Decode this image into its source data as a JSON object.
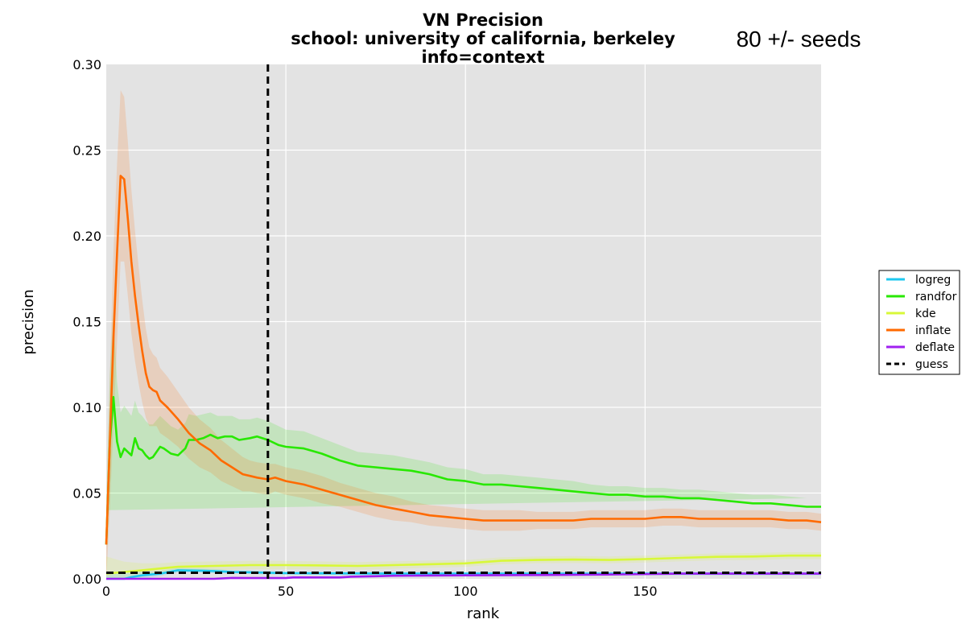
{
  "chart_data": {
    "type": "line",
    "title_lines": [
      "VN Precision",
      "school: university of california, berkeley",
      "info=context"
    ],
    "annotation": "80 +/- seeds",
    "xlabel": "rank",
    "ylabel": "precision",
    "xlim": [
      0,
      199
    ],
    "ylim": [
      0,
      0.3
    ],
    "xticks": [
      0,
      50,
      100,
      150
    ],
    "xtick_labels": [
      "0",
      "50",
      "100",
      "150"
    ],
    "yticks": [
      0,
      0.05,
      0.1,
      0.15,
      0.2,
      0.25,
      0.3
    ],
    "ytick_labels": [
      "0.00",
      "0.05",
      "0.10",
      "0.15",
      "0.20",
      "0.25",
      "0.30"
    ],
    "grid": true,
    "legend_position": "outside-right",
    "vline": {
      "x": 45,
      "style": "dashed",
      "color": "#000000"
    },
    "series": [
      {
        "name": "logreg",
        "color": "#1ec8f0",
        "points": [
          [
            0,
            0
          ],
          [
            5,
            0
          ],
          [
            7,
            0.001
          ],
          [
            10,
            0.002
          ],
          [
            15,
            0.003
          ],
          [
            20,
            0.005
          ],
          [
            25,
            0.0048
          ],
          [
            30,
            0.0045
          ],
          [
            35,
            0.004
          ],
          [
            40,
            0.0038
          ],
          [
            45,
            0.0035
          ],
          [
            50,
            0.0033
          ],
          [
            60,
            0.0032
          ],
          [
            80,
            0.003
          ],
          [
            100,
            0.003
          ],
          [
            150,
            0.003
          ],
          [
            199,
            0.003
          ]
        ],
        "band": [
          0.004,
          0.003,
          0.0025,
          0.002,
          0.0015,
          0.0015,
          0.0012,
          0.0012,
          0.001,
          0.001,
          0.001,
          0.001,
          0.001,
          0.001,
          0.001,
          0.001,
          0.001
        ]
      },
      {
        "name": "randfor",
        "color": "#28e800",
        "points": [
          [
            0,
            0.02
          ],
          [
            1,
            0.08
          ],
          [
            2,
            0.106
          ],
          [
            3,
            0.08
          ],
          [
            4,
            0.071
          ],
          [
            5,
            0.076
          ],
          [
            6,
            0.074
          ],
          [
            7,
            0.072
          ],
          [
            8,
            0.082
          ],
          [
            9,
            0.076
          ],
          [
            10,
            0.075
          ],
          [
            11,
            0.072
          ],
          [
            12,
            0.07
          ],
          [
            13,
            0.071
          ],
          [
            15,
            0.077
          ],
          [
            16,
            0.076
          ],
          [
            18,
            0.073
          ],
          [
            20,
            0.072
          ],
          [
            22,
            0.076
          ],
          [
            23,
            0.081
          ],
          [
            25,
            0.081
          ],
          [
            27,
            0.082
          ],
          [
            29,
            0.084
          ],
          [
            31,
            0.082
          ],
          [
            33,
            0.083
          ],
          [
            35,
            0.083
          ],
          [
            37,
            0.081
          ],
          [
            40,
            0.082
          ],
          [
            42,
            0.083
          ],
          [
            45,
            0.081
          ],
          [
            48,
            0.078
          ],
          [
            50,
            0.077
          ],
          [
            55,
            0.076
          ],
          [
            60,
            0.073
          ],
          [
            65,
            0.069
          ],
          [
            70,
            0.066
          ],
          [
            75,
            0.065
          ],
          [
            80,
            0.064
          ],
          [
            85,
            0.063
          ],
          [
            90,
            0.061
          ],
          [
            95,
            0.058
          ],
          [
            100,
            0.057
          ],
          [
            105,
            0.055
          ],
          [
            110,
            0.055
          ],
          [
            115,
            0.054
          ],
          [
            120,
            0.053
          ],
          [
            125,
            0.052
          ],
          [
            130,
            0.051
          ],
          [
            135,
            0.05
          ],
          [
            140,
            0.049
          ],
          [
            145,
            0.049
          ],
          [
            150,
            0.048
          ],
          [
            155,
            0.048
          ],
          [
            160,
            0.047
          ],
          [
            165,
            0.047
          ],
          [
            170,
            0.046
          ],
          [
            175,
            0.045
          ],
          [
            180,
            0.044
          ],
          [
            185,
            0.044
          ],
          [
            190,
            0.043
          ],
          [
            195,
            0.042
          ],
          [
            199,
            0.042
          ]
        ],
        "band": [
          0.02,
          0.04,
          0.05,
          0.035,
          0.026,
          0.025,
          0.024,
          0.023,
          0.022,
          0.021,
          0.02,
          0.02,
          0.02,
          0.019,
          0.018,
          0.017,
          0.016,
          0.015,
          0.015,
          0.015,
          0.014,
          0.014,
          0.013,
          0.013,
          0.012,
          0.012,
          0.012,
          0.011,
          0.011,
          0.011,
          0.011,
          0.01,
          0.01,
          0.009,
          0.009,
          0.008,
          0.008,
          0.008,
          0.007,
          0.007,
          0.007,
          0.007,
          0.006,
          0.006,
          0.006,
          0.006,
          0.006,
          0.006,
          0.005,
          0.005,
          0.005,
          0.005,
          0.005,
          0.005,
          0.005,
          0.005,
          0.005,
          0.005,
          0.005,
          0.005,
          0.005
        ]
      },
      {
        "name": "kde",
        "color": "#d8f838",
        "points": [
          [
            0,
            0.003
          ],
          [
            5,
            0.004
          ],
          [
            10,
            0.005
          ],
          [
            15,
            0.006
          ],
          [
            20,
            0.007
          ],
          [
            30,
            0.0075
          ],
          [
            40,
            0.008
          ],
          [
            50,
            0.008
          ],
          [
            60,
            0.0078
          ],
          [
            70,
            0.0075
          ],
          [
            80,
            0.008
          ],
          [
            90,
            0.0085
          ],
          [
            100,
            0.009
          ],
          [
            110,
            0.0105
          ],
          [
            120,
            0.011
          ],
          [
            130,
            0.0112
          ],
          [
            140,
            0.011
          ],
          [
            150,
            0.0115
          ],
          [
            160,
            0.0122
          ],
          [
            170,
            0.0128
          ],
          [
            180,
            0.013
          ],
          [
            190,
            0.0135
          ],
          [
            199,
            0.0135
          ]
        ],
        "band": [
          0.01,
          0.006,
          0.004,
          0.003,
          0.0028,
          0.0026,
          0.0025,
          0.0024,
          0.0023,
          0.0022,
          0.0022,
          0.0021,
          0.002,
          0.002,
          0.002,
          0.002,
          0.002,
          0.002,
          0.002,
          0.002,
          0.002,
          0.002,
          0.002
        ]
      },
      {
        "name": "inflate",
        "color": "#ff6a00",
        "points": [
          [
            0,
            0.02
          ],
          [
            1,
            0.08
          ],
          [
            2,
            0.14
          ],
          [
            3,
            0.19
          ],
          [
            4,
            0.235
          ],
          [
            5,
            0.233
          ],
          [
            6,
            0.21
          ],
          [
            7,
            0.185
          ],
          [
            8,
            0.165
          ],
          [
            9,
            0.148
          ],
          [
            10,
            0.133
          ],
          [
            11,
            0.12
          ],
          [
            12,
            0.112
          ],
          [
            13,
            0.11
          ],
          [
            14,
            0.109
          ],
          [
            15,
            0.104
          ],
          [
            17,
            0.1
          ],
          [
            20,
            0.093
          ],
          [
            23,
            0.085
          ],
          [
            26,
            0.079
          ],
          [
            29,
            0.075
          ],
          [
            32,
            0.069
          ],
          [
            35,
            0.065
          ],
          [
            38,
            0.061
          ],
          [
            40,
            0.06
          ],
          [
            42,
            0.059
          ],
          [
            45,
            0.058
          ],
          [
            47,
            0.059
          ],
          [
            50,
            0.057
          ],
          [
            55,
            0.055
          ],
          [
            60,
            0.052
          ],
          [
            65,
            0.049
          ],
          [
            70,
            0.046
          ],
          [
            75,
            0.043
          ],
          [
            80,
            0.041
          ],
          [
            85,
            0.039
          ],
          [
            90,
            0.037
          ],
          [
            95,
            0.036
          ],
          [
            100,
            0.035
          ],
          [
            105,
            0.034
          ],
          [
            110,
            0.034
          ],
          [
            115,
            0.034
          ],
          [
            120,
            0.034
          ],
          [
            125,
            0.034
          ],
          [
            130,
            0.034
          ],
          [
            135,
            0.035
          ],
          [
            140,
            0.035
          ],
          [
            145,
            0.035
          ],
          [
            150,
            0.035
          ],
          [
            155,
            0.036
          ],
          [
            160,
            0.036
          ],
          [
            165,
            0.035
          ],
          [
            170,
            0.035
          ],
          [
            175,
            0.035
          ],
          [
            180,
            0.035
          ],
          [
            185,
            0.035
          ],
          [
            190,
            0.034
          ],
          [
            195,
            0.034
          ],
          [
            199,
            0.033
          ]
        ],
        "band": [
          0.02,
          0.04,
          0.05,
          0.052,
          0.05,
          0.048,
          0.045,
          0.042,
          0.038,
          0.034,
          0.03,
          0.026,
          0.023,
          0.021,
          0.02,
          0.019,
          0.018,
          0.016,
          0.015,
          0.014,
          0.013,
          0.012,
          0.011,
          0.01,
          0.009,
          0.009,
          0.009,
          0.008,
          0.008,
          0.008,
          0.008,
          0.007,
          0.007,
          0.007,
          0.007,
          0.006,
          0.006,
          0.006,
          0.006,
          0.006,
          0.006,
          0.006,
          0.005,
          0.005,
          0.005,
          0.005,
          0.005,
          0.005,
          0.005,
          0.005,
          0.005,
          0.005,
          0.005,
          0.005,
          0.005,
          0.005,
          0.005,
          0.005,
          0.005
        ]
      },
      {
        "name": "deflate",
        "color": "#a020f0",
        "points": [
          [
            0,
            0
          ],
          [
            10,
            0
          ],
          [
            20,
            0
          ],
          [
            30,
            0
          ],
          [
            35,
            0.0005
          ],
          [
            40,
            0.0004
          ],
          [
            50,
            0.0004
          ],
          [
            52,
            0.0008
          ],
          [
            60,
            0.0008
          ],
          [
            65,
            0.0008
          ],
          [
            68,
            0.0012
          ],
          [
            75,
            0.0015
          ],
          [
            80,
            0.0018
          ],
          [
            100,
            0.002
          ],
          [
            120,
            0.0022
          ],
          [
            140,
            0.0025
          ],
          [
            160,
            0.003
          ],
          [
            180,
            0.003
          ],
          [
            199,
            0.003
          ]
        ],
        "band": [
          0,
          0,
          0,
          0,
          0.0005,
          0.0005,
          0.0005,
          0.0005,
          0.0005,
          0.0005,
          0.0005,
          0.0005,
          0.0005,
          0.0005,
          0.0005,
          0.0005,
          0.0005,
          0.0005,
          0.0005
        ]
      },
      {
        "name": "guess",
        "color": "#000000",
        "style": "dashed",
        "points": [
          [
            0,
            0.0035
          ],
          [
            199,
            0.0035
          ]
        ],
        "band": null
      }
    ]
  }
}
